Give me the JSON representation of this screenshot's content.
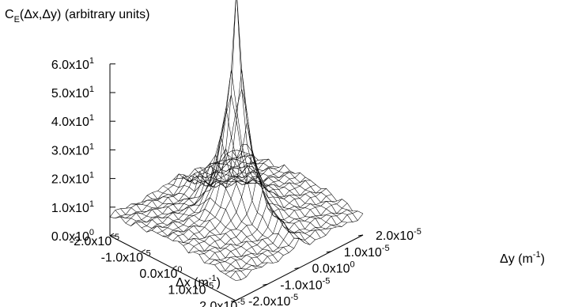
{
  "chart_data": {
    "type": "surface",
    "title": {
      "base": "C",
      "sub": "E",
      "rest": "(Δx,Δy) (arbitrary units)"
    },
    "xlabel": {
      "text": "Δx (m",
      "sup": "-1",
      "close": ")"
    },
    "ylabel": {
      "text": "Δy (m",
      "sup": "-1",
      "close": ")"
    },
    "xlim": [
      -2e-05,
      2e-05
    ],
    "ylim": [
      -2e-05,
      2e-05
    ],
    "zlim": [
      0,
      60
    ],
    "z_ticks": [
      {
        "value": 0,
        "mant": "0.0x10",
        "exp": "0"
      },
      {
        "value": 10,
        "mant": "1.0x10",
        "exp": "1"
      },
      {
        "value": 20,
        "mant": "2.0x10",
        "exp": "1"
      },
      {
        "value": 30,
        "mant": "3.0x10",
        "exp": "1"
      },
      {
        "value": 40,
        "mant": "4.0x10",
        "exp": "1"
      },
      {
        "value": 50,
        "mant": "5.0x10",
        "exp": "1"
      },
      {
        "value": 60,
        "mant": "6.0x10",
        "exp": "1"
      }
    ],
    "x_ticks": [
      {
        "value": -2e-05,
        "mant": "-2.0x10",
        "exp": "-5"
      },
      {
        "value": -1e-05,
        "mant": "-1.0x10",
        "exp": "-5"
      },
      {
        "value": 0,
        "mant": "0.0x10",
        "exp": "0"
      },
      {
        "value": 1e-05,
        "mant": "1.0x10",
        "exp": "-5"
      },
      {
        "value": 2e-05,
        "mant": "2.0x10",
        "exp": "-5"
      }
    ],
    "y_ticks": [
      {
        "value": -2e-05,
        "mant": "-2.0x10",
        "exp": "-5"
      },
      {
        "value": -1e-05,
        "mant": "-1.0x10",
        "exp": "-5"
      },
      {
        "value": 0,
        "mant": "0.0x10",
        "exp": "0"
      },
      {
        "value": 1e-05,
        "mant": "1.0x10",
        "exp": "-5"
      },
      {
        "value": 2e-05,
        "mant": "2.0x10",
        "exp": "-5"
      }
    ],
    "grid": false,
    "legend": "none",
    "surface": {
      "grid_points": 25,
      "baseline_level": 10,
      "peak_value": 60,
      "peak_at": [
        0,
        0
      ],
      "ridge": "along Δx at Δy = 0, level about 25",
      "style": "wireframe"
    },
    "colors": {
      "line": "#000000",
      "background": "#ffffff"
    }
  }
}
